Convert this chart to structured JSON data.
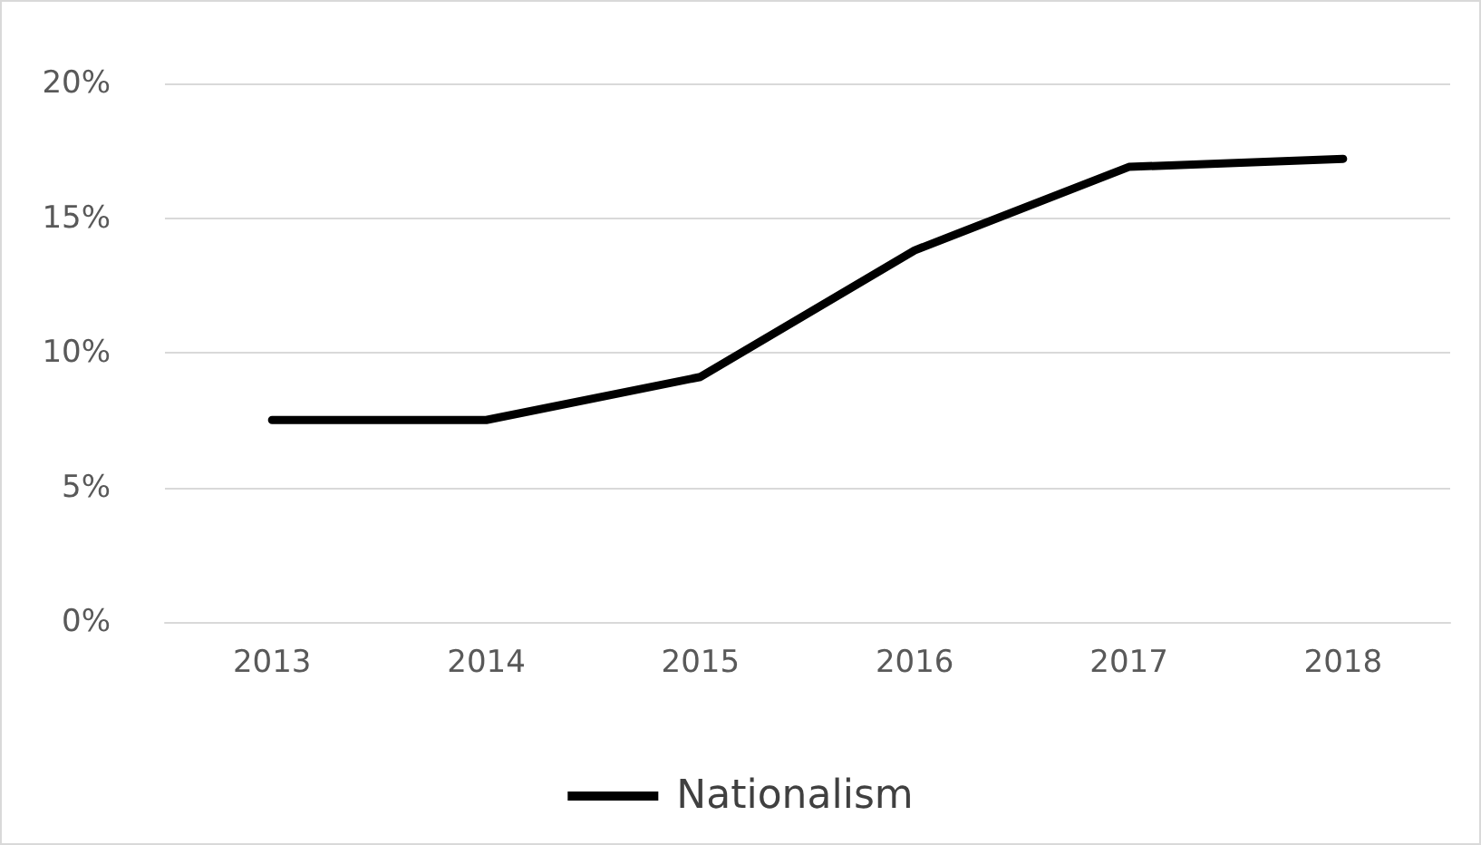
{
  "chart_data": {
    "type": "line",
    "categories": [
      "2013",
      "2014",
      "2015",
      "2016",
      "2017",
      "2018"
    ],
    "series": [
      {
        "name": "Nationalism",
        "color": "#000000",
        "values": [
          7.5,
          7.5,
          9.1,
          13.8,
          16.9,
          17.2
        ]
      }
    ],
    "ylim": [
      0,
      20
    ],
    "yticks": [
      {
        "value": 0,
        "label": "0%"
      },
      {
        "value": 5,
        "label": "5%"
      },
      {
        "value": 10,
        "label": "10%"
      },
      {
        "value": 15,
        "label": "15%"
      },
      {
        "value": 20,
        "label": "20%"
      }
    ],
    "grid": "y",
    "legend": "bottom",
    "marker": "none",
    "line_style": "solid"
  }
}
